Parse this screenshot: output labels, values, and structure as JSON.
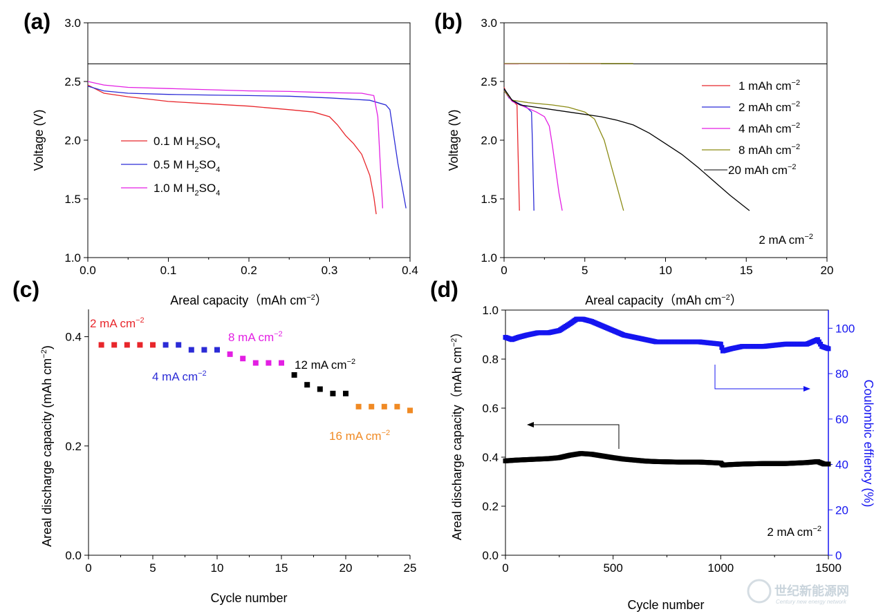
{
  "chart_data": [
    {
      "id": "a",
      "type": "line",
      "panel_label": "(a)",
      "xlabel": "Areal capacity（mAh cm⁻²）",
      "ylabel": "Voltage (V)",
      "xlim": [
        0,
        0.4
      ],
      "ylim": [
        1.0,
        3.0
      ],
      "xticks": [
        "0.0",
        "0.1",
        "0.2",
        "0.3",
        "0.4"
      ],
      "yticks": [
        "1.0",
        "1.5",
        "2.0",
        "2.5",
        "3.0"
      ],
      "legend_position": "center-left",
      "reference_line_y": 2.65,
      "series": [
        {
          "name": "0.1 M H₂SO₄",
          "color": "#e8262b",
          "x": [
            0,
            0.02,
            0.05,
            0.1,
            0.15,
            0.2,
            0.25,
            0.28,
            0.3,
            0.31,
            0.32,
            0.33,
            0.34,
            0.35,
            0.355,
            0.358
          ],
          "y": [
            2.47,
            2.4,
            2.37,
            2.33,
            2.31,
            2.29,
            2.26,
            2.24,
            2.2,
            2.13,
            2.04,
            1.97,
            1.88,
            1.7,
            1.52,
            1.37
          ]
        },
        {
          "name": "0.5 M H₂SO₄",
          "color": "#2b2bd6",
          "x": [
            0,
            0.02,
            0.05,
            0.1,
            0.15,
            0.2,
            0.25,
            0.3,
            0.35,
            0.37,
            0.375,
            0.385,
            0.395
          ],
          "y": [
            2.46,
            2.42,
            2.4,
            2.39,
            2.385,
            2.38,
            2.375,
            2.36,
            2.34,
            2.3,
            2.26,
            1.8,
            1.42
          ]
        },
        {
          "name": "1.0 M H₂SO₄",
          "color": "#e31fe3",
          "x": [
            0,
            0.02,
            0.05,
            0.1,
            0.15,
            0.2,
            0.25,
            0.3,
            0.34,
            0.355,
            0.36,
            0.363,
            0.366
          ],
          "y": [
            2.5,
            2.47,
            2.45,
            2.44,
            2.43,
            2.42,
            2.415,
            2.405,
            2.4,
            2.38,
            2.2,
            1.8,
            1.42
          ]
        }
      ]
    },
    {
      "id": "b",
      "type": "line",
      "panel_label": "(b)",
      "xlabel": "Areal capacity（mAh cm⁻²）",
      "ylabel": "Voltage (V)",
      "xlim": [
        0,
        20
      ],
      "ylim": [
        1.0,
        3.0
      ],
      "xticks": [
        "0",
        "5",
        "10",
        "15",
        "20"
      ],
      "yticks": [
        "1.0",
        "1.5",
        "2.0",
        "2.5",
        "3.0"
      ],
      "legend_position": "top-right",
      "annotation": "2 mA cm⁻²",
      "series": [
        {
          "name": "1 mAh cm⁻²",
          "color": "#e8262b",
          "x": [
            0,
            0.2,
            0.5,
            0.8,
            0.85,
            0.9,
            0.95
          ],
          "y": [
            2.45,
            2.38,
            2.34,
            2.3,
            2.0,
            1.7,
            1.4
          ],
          "charge_x": [
            0,
            0.9
          ],
          "charge_y": [
            2.65,
            2.65
          ]
        },
        {
          "name": "2 mAh cm⁻²",
          "color": "#2b2bd6",
          "x": [
            0,
            0.3,
            0.8,
            1.4,
            1.7,
            1.75,
            1.8,
            1.85
          ],
          "y": [
            2.44,
            2.36,
            2.32,
            2.28,
            2.24,
            2.0,
            1.7,
            1.4
          ],
          "charge_x": [
            0,
            4.0
          ],
          "charge_y": [
            2.651,
            2.651
          ]
        },
        {
          "name": "4 mAh cm⁻²",
          "color": "#e31fe3",
          "x": [
            0,
            0.5,
            1.0,
            1.5,
            2.0,
            2.5,
            2.8,
            3.0,
            3.2,
            3.4,
            3.6
          ],
          "y": [
            2.42,
            2.33,
            2.3,
            2.27,
            2.24,
            2.2,
            2.12,
            1.95,
            1.75,
            1.55,
            1.4
          ],
          "charge_x": [
            0,
            6.0
          ],
          "charge_y": [
            2.652,
            2.652
          ]
        },
        {
          "name": "8 mAh cm⁻²",
          "color": "#8a8a12",
          "x": [
            0,
            0.5,
            1.5,
            3.0,
            4.0,
            5.0,
            5.6,
            6.2,
            6.6,
            7.0,
            7.4
          ],
          "y": [
            2.42,
            2.34,
            2.32,
            2.3,
            2.28,
            2.24,
            2.18,
            2.0,
            1.8,
            1.6,
            1.4
          ],
          "charge_x": [
            0,
            8.0
          ],
          "charge_y": [
            2.653,
            2.653
          ]
        },
        {
          "name": "20 mAh cm⁻²",
          "color": "#000000",
          "x": [
            0,
            0.5,
            1.0,
            2.0,
            4.0,
            6.0,
            7.0,
            8.0,
            9.0,
            10.0,
            11.0,
            12.0,
            13.0,
            14.0,
            15.2
          ],
          "y": [
            2.44,
            2.34,
            2.3,
            2.28,
            2.24,
            2.2,
            2.17,
            2.13,
            2.06,
            1.97,
            1.88,
            1.77,
            1.65,
            1.53,
            1.4
          ]
        }
      ]
    },
    {
      "id": "c",
      "type": "scatter",
      "panel_label": "(c)",
      "xlabel": "Cycle number",
      "ylabel": "Areal discharge capacity (mAh cm⁻²)",
      "xlim": [
        0,
        25
      ],
      "ylim": [
        0,
        0.45
      ],
      "xticks": [
        "0",
        "5",
        "10",
        "15",
        "20",
        "25"
      ],
      "yticks": [
        "0.0",
        "0.2",
        "0.4"
      ],
      "series": [
        {
          "name": "2 mA cm⁻²",
          "color": "#e8262b",
          "x": [
            1,
            2,
            3,
            4,
            5
          ],
          "y": [
            0.385,
            0.385,
            0.385,
            0.385,
            0.385
          ]
        },
        {
          "name": "4 mA cm⁻²",
          "color": "#2b2bd6",
          "x": [
            6,
            7,
            8,
            9,
            10
          ],
          "y": [
            0.385,
            0.385,
            0.376,
            0.376,
            0.376
          ]
        },
        {
          "name": "8 mA cm⁻²",
          "color": "#e31fe3",
          "x": [
            11,
            12,
            13,
            14,
            15
          ],
          "y": [
            0.368,
            0.36,
            0.352,
            0.352,
            0.352
          ]
        },
        {
          "name": "12 mA cm⁻²",
          "color": "#000000",
          "x": [
            16,
            17,
            18,
            19,
            20
          ],
          "y": [
            0.33,
            0.312,
            0.304,
            0.296,
            0.296
          ]
        },
        {
          "name": "16 mA cm⁻²",
          "color": "#f08a24",
          "x": [
            21,
            22,
            23,
            24,
            25
          ],
          "y": [
            0.272,
            0.272,
            0.272,
            0.272,
            0.265
          ]
        }
      ]
    },
    {
      "id": "d",
      "type": "scatter",
      "panel_label": "(d)",
      "xlabel": "Cycle number",
      "ylabel": "Areal discharge capacity（mAh cm⁻²）",
      "y2label": "Coulombic effiency (%)",
      "xlim": [
        0,
        1500
      ],
      "ylim": [
        0,
        1.0
      ],
      "y2lim": [
        0,
        108
      ],
      "xticks": [
        "0",
        "500",
        "1000",
        "1500"
      ],
      "yticks": [
        "0.0",
        "0.2",
        "0.4",
        "0.6",
        "0.8",
        "1.0"
      ],
      "y2ticks": [
        "0",
        "20",
        "40",
        "60",
        "80",
        "100"
      ],
      "annotation": "2 mA cm⁻²",
      "series": [
        {
          "name": "Areal discharge capacity",
          "axis": "left",
          "color": "#000000",
          "x": [
            0,
            50,
            100,
            150,
            200,
            250,
            300,
            350,
            400,
            450,
            500,
            550,
            600,
            650,
            700,
            800,
            900,
            1000,
            1010,
            1050,
            1100,
            1200,
            1300,
            1400,
            1450,
            1480,
            1500
          ],
          "y": [
            0.385,
            0.388,
            0.39,
            0.392,
            0.394,
            0.398,
            0.408,
            0.415,
            0.412,
            0.405,
            0.398,
            0.392,
            0.388,
            0.384,
            0.382,
            0.38,
            0.38,
            0.376,
            0.368,
            0.37,
            0.372,
            0.374,
            0.374,
            0.378,
            0.382,
            0.372,
            0.372
          ]
        },
        {
          "name": "Coulombic effiency",
          "axis": "right",
          "color": "#1515f0",
          "x": [
            0,
            30,
            60,
            100,
            150,
            200,
            250,
            300,
            330,
            360,
            400,
            450,
            500,
            550,
            600,
            650,
            700,
            800,
            900,
            1000,
            1010,
            1050,
            1100,
            1200,
            1300,
            1400,
            1450,
            1470,
            1500
          ],
          "y": [
            96,
            95,
            96,
            97,
            98,
            98,
            99,
            102,
            104,
            104,
            103,
            101,
            99,
            97,
            96,
            95,
            94,
            94,
            94,
            93,
            90,
            91,
            92,
            92,
            93,
            93,
            95,
            92,
            91
          ]
        }
      ]
    }
  ],
  "watermark": {
    "main": "世纪新能源网",
    "sub": "Century new energy network"
  }
}
